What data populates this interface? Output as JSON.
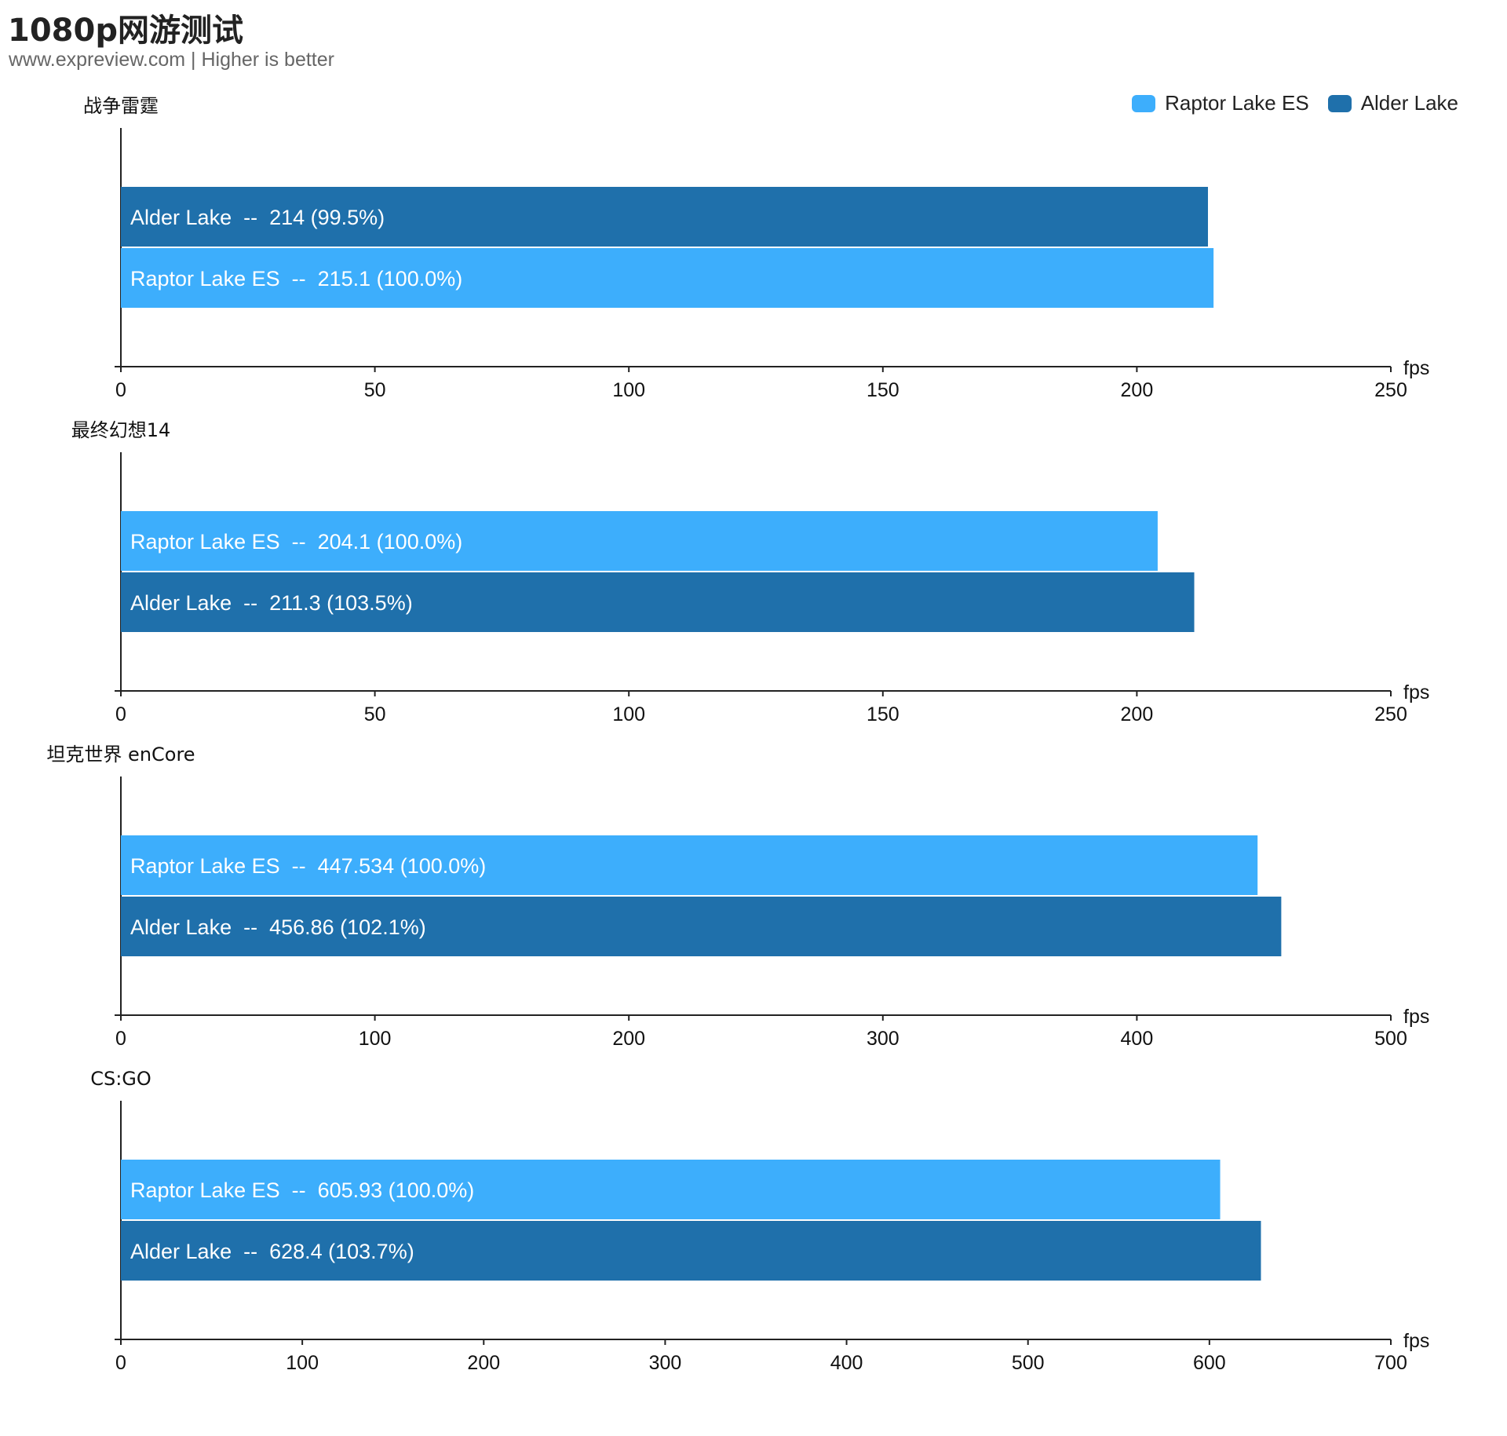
{
  "title": "1080p网游测试",
  "subtitle": "www.expreview.com | Higher is better",
  "legend": [
    {
      "name": "Raptor Lake ES",
      "color": "#3daefc"
    },
    {
      "name": "Alder Lake",
      "color": "#1f70ab"
    }
  ],
  "chart_data": [
    {
      "type": "bar",
      "orientation": "horizontal",
      "title": "战争雷霆",
      "unit": "fps",
      "xlim": [
        0,
        250
      ],
      "ticks": [
        0,
        50,
        100,
        150,
        200,
        250
      ],
      "bars": [
        {
          "series": "Alder Lake",
          "value": 214,
          "label": "Alder Lake  --  214 (99.5%)"
        },
        {
          "series": "Raptor Lake ES",
          "value": 215.1,
          "label": "Raptor Lake ES  --  215.1 (100.0%)"
        }
      ]
    },
    {
      "type": "bar",
      "orientation": "horizontal",
      "title": "最终幻想14",
      "unit": "fps",
      "xlim": [
        0,
        250
      ],
      "ticks": [
        0,
        50,
        100,
        150,
        200,
        250
      ],
      "bars": [
        {
          "series": "Raptor Lake ES",
          "value": 204.1,
          "label": "Raptor Lake ES  --  204.1 (100.0%)"
        },
        {
          "series": "Alder Lake",
          "value": 211.3,
          "label": "Alder Lake  --  211.3 (103.5%)"
        }
      ]
    },
    {
      "type": "bar",
      "orientation": "horizontal",
      "title": "坦克世界 enCore",
      "unit": "fps",
      "xlim": [
        0,
        500
      ],
      "ticks": [
        0,
        100,
        200,
        300,
        400,
        500
      ],
      "bars": [
        {
          "series": "Raptor Lake ES",
          "value": 447.534,
          "label": "Raptor Lake ES  --  447.534 (100.0%)"
        },
        {
          "series": "Alder Lake",
          "value": 456.86,
          "label": "Alder Lake  --  456.86 (102.1%)"
        }
      ]
    },
    {
      "type": "bar",
      "orientation": "horizontal",
      "title": "CS:GO",
      "unit": "fps",
      "xlim": [
        0,
        700
      ],
      "ticks": [
        0,
        100,
        200,
        300,
        400,
        500,
        600,
        700
      ],
      "bars": [
        {
          "series": "Raptor Lake ES",
          "value": 605.93,
          "label": "Raptor Lake ES  --  605.93 (100.0%)"
        },
        {
          "series": "Alder Lake",
          "value": 628.4,
          "label": "Alder Lake  --  628.4 (103.7%)"
        }
      ]
    }
  ]
}
